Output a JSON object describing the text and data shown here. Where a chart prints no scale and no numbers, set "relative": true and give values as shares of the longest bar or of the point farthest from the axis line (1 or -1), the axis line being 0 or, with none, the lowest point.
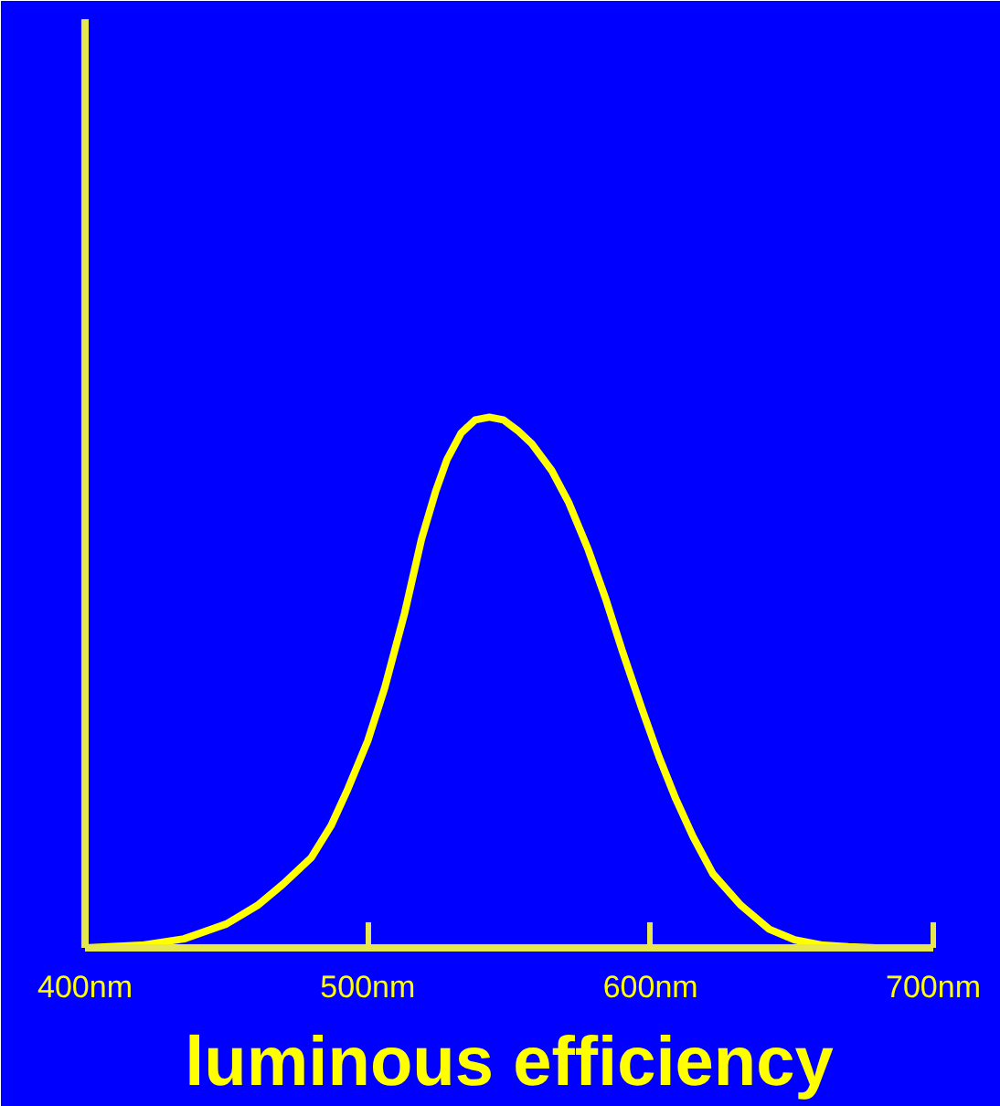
{
  "chart_data": {
    "type": "line",
    "relative": true,
    "xlabel": "luminous efficiency",
    "xlim": [
      400,
      700
    ],
    "xticks": [
      {
        "value": 400,
        "label": "400nm"
      },
      {
        "value": 500,
        "label": "500nm"
      },
      {
        "value": 600,
        "label": "600nm"
      },
      {
        "value": 700,
        "label": "700nm"
      }
    ],
    "x": [
      400,
      420,
      435,
      450,
      461,
      470,
      480,
      487,
      493,
      500,
      506,
      513,
      519,
      524,
      528,
      533,
      538,
      543,
      548,
      553,
      558,
      565,
      571,
      578,
      584,
      590,
      597,
      603,
      609,
      615,
      622,
      632,
      642,
      651,
      661,
      670,
      680,
      700
    ],
    "series": [
      {
        "color": "#ffff00",
        "values": [
          0,
          0.005,
          0.017,
          0.045,
          0.08,
          0.12,
          0.17,
          0.23,
          0.3,
          0.39,
          0.49,
          0.63,
          0.77,
          0.86,
          0.92,
          0.97,
          0.995,
          1,
          0.995,
          0.975,
          0.95,
          0.9,
          0.84,
          0.75,
          0.66,
          0.56,
          0.45,
          0.36,
          0.28,
          0.21,
          0.14,
          0.08,
          0.035,
          0.015,
          0.005,
          0.002,
          0,
          0
        ]
      }
    ],
    "grid": false,
    "marker": "none",
    "line_style": "solid"
  }
}
